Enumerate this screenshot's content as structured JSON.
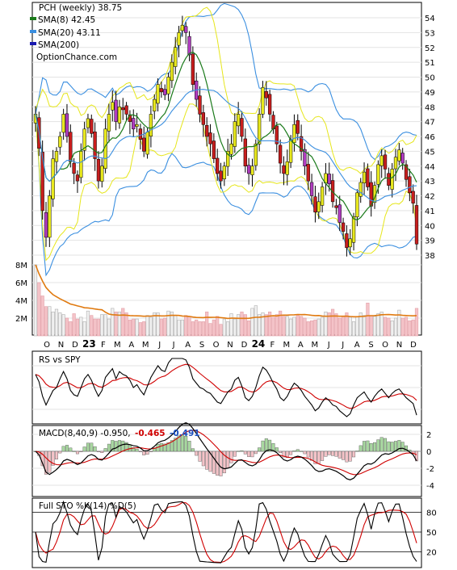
{
  "chart_data": [
    {
      "panel": "price",
      "type": "candlestick",
      "title": "PCH (weekly) 38.75",
      "legend": [
        {
          "label": "SMA(8) 42.45",
          "color": "#1a7a1a"
        },
        {
          "label": "SMA(20) 43.11",
          "color": "#3b8fe0"
        },
        {
          "label": "SMA(200)",
          "color": "#1a1ab0"
        }
      ],
      "watermark": "OptionChance.com",
      "y_ticks": [
        "54",
        "53",
        "52",
        "51",
        "50",
        "49",
        "48",
        "47",
        "46",
        "45",
        "44",
        "43",
        "42",
        "41",
        "40",
        "39",
        "38"
      ],
      "ylim": [
        37.5,
        54.5
      ],
      "x_labels": [
        "O",
        "N",
        "D",
        "23",
        "F",
        "M",
        "A",
        "M",
        "J",
        "J",
        "A",
        "S",
        "O",
        "N",
        "D",
        "24",
        "F",
        "M",
        "A",
        "M",
        "J",
        "J",
        "A",
        "S",
        "O",
        "N",
        "D"
      ],
      "bold_x_labels": [
        "23",
        "24"
      ],
      "closes": [
        47.5,
        45.2,
        41,
        39.2,
        42,
        44.5,
        45,
        46,
        47.5,
        46,
        44.3,
        43.5,
        43,
        45,
        46.5,
        47.2,
        46.2,
        44.5,
        43,
        44,
        46.5,
        47.5,
        48.3,
        47,
        48,
        47.8,
        47.5,
        47,
        46.5,
        46.8,
        45.8,
        45,
        46.3,
        47.5,
        48.5,
        49.5,
        49,
        48.8,
        50,
        51,
        52,
        53,
        53.5,
        53,
        51.5,
        49.5,
        48.5,
        47.5,
        46.8,
        46,
        45.5,
        44.5,
        43.5,
        43,
        44,
        45,
        45.5,
        47,
        47.5,
        46,
        44,
        43.5,
        44,
        45.5,
        47.5,
        49.3,
        48.6,
        47.5,
        46.5,
        45.5,
        44.2,
        43.5,
        44.3,
        45.8,
        46.8,
        46.2,
        45,
        44,
        43,
        42,
        40.9,
        41.6,
        42.6,
        43.5,
        42.8,
        41.6,
        41.2,
        40.2,
        39.6,
        38.5,
        39.1,
        40.6,
        42.2,
        42.9,
        43.6,
        42.6,
        41.3,
        42.7,
        44.1,
        44.7,
        43.8,
        42.7,
        43.8,
        44.6,
        45.1,
        44.2,
        43.1,
        42.2,
        41.5,
        38.75
      ]
    },
    {
      "panel": "volume",
      "type": "bar",
      "y_ticks": [
        "8M",
        "6M",
        "4M",
        "2M"
      ],
      "ylim": [
        0,
        8.5
      ],
      "unit": "M",
      "values": [
        8,
        6,
        4.5,
        3.3,
        3.3,
        2.7,
        3.0,
        2.6,
        2.4,
        2.0,
        1.6,
        2.5,
        1.9,
        2.1,
        1.6,
        2.8,
        2.3,
        1.9,
        1.9,
        2.4,
        2.4,
        1.9,
        3.1,
        2.7,
        2.7,
        3.1,
        2.6,
        1.8,
        1.9,
        1.9,
        1.5,
        1.6,
        2.3,
        2.1,
        2.6,
        2.6,
        1.9,
        2.0,
        2.8,
        2.7,
        2.3,
        1.8,
        1.8,
        2.3,
        2.2,
        1.6,
        1.8,
        1.6,
        1.6,
        2.7,
        1.4,
        1.8,
        2.2,
        1.3,
        1.9,
        1.6,
        2.5,
        1.9,
        2.4,
        2.7,
        2.4,
        1.7,
        3.1,
        3.4,
        2.4,
        2.6,
        2.4,
        2.7,
        2.1,
        2.4,
        2.8,
        2.2,
        2.2,
        1.9,
        2.1,
        2.3,
        2.2,
        2.0,
        1.6,
        1.7,
        1.8,
        1.9,
        2.1,
        2.7,
        2.6,
        3.0,
        2.5,
        2.0,
        2.2,
        2.6,
        2.1,
        1.6,
        2.2,
        2.6,
        2.3,
        3.7,
        2.3,
        2.2,
        2.5,
        2.7,
        2.1,
        2.0,
        1.7,
        2.0,
        2.9,
        2.0,
        2.1,
        1.7,
        1.8,
        3.1
      ]
    },
    {
      "panel": "rs",
      "type": "line",
      "label": "RS vs SPY",
      "series": [
        {
          "values": [
            0.45,
            0.2,
            -0.3,
            -0.6,
            -0.35,
            -0.1,
            0.0,
            0.3,
            0.55,
            0.3,
            -0.1,
            -0.25,
            -0.3,
            0.0,
            0.3,
            0.45,
            0.25,
            -0.05,
            -0.3,
            -0.1,
            0.35,
            0.5,
            0.65,
            0.3,
            0.55,
            0.45,
            0.4,
            0.25,
            0.0,
            0.1,
            -0.1,
            -0.25,
            0.05,
            0.35,
            0.55,
            0.75,
            0.6,
            0.55,
            0.85,
            1.0,
            1.0,
            1.0,
            1.0,
            0.95,
            0.7,
            0.3,
            0.15,
            0.0,
            -0.05,
            -0.15,
            -0.2,
            -0.35,
            -0.5,
            -0.55,
            -0.35,
            -0.15,
            -0.05,
            0.25,
            0.35,
            0.05,
            -0.35,
            -0.45,
            -0.3,
            0.0,
            0.4,
            0.7,
            0.6,
            0.4,
            0.15,
            -0.05,
            -0.35,
            -0.45,
            -0.3,
            -0.05,
            0.15,
            0.05,
            -0.1,
            -0.3,
            -0.45,
            -0.6,
            -0.8,
            -0.7,
            -0.5,
            -0.35,
            -0.45,
            -0.6,
            -0.65,
            -0.8,
            -0.9,
            -1.0,
            -0.9,
            -0.6,
            -0.35,
            -0.25,
            -0.15,
            -0.35,
            -0.5,
            -0.3,
            -0.15,
            -0.05,
            -0.2,
            -0.35,
            -0.2,
            -0.1,
            -0.05,
            -0.2,
            -0.35,
            -0.45,
            -0.55,
            -0.95
          ]
        }
      ]
    },
    {
      "panel": "macd",
      "type": "line",
      "label": "MACD(8,40,9) -0.950,",
      "value_macd": "-0.465",
      "value_signal": "-0.491",
      "y_ticks": [
        "2",
        "0",
        "-2",
        "-4"
      ],
      "ylim": [
        -5,
        2.8
      ]
    },
    {
      "panel": "stochastic",
      "type": "line",
      "label": "Full STO %K(14) %D(5)",
      "y_ticks": [
        "80",
        "50",
        "20"
      ],
      "ylim": [
        0,
        100
      ]
    }
  ]
}
